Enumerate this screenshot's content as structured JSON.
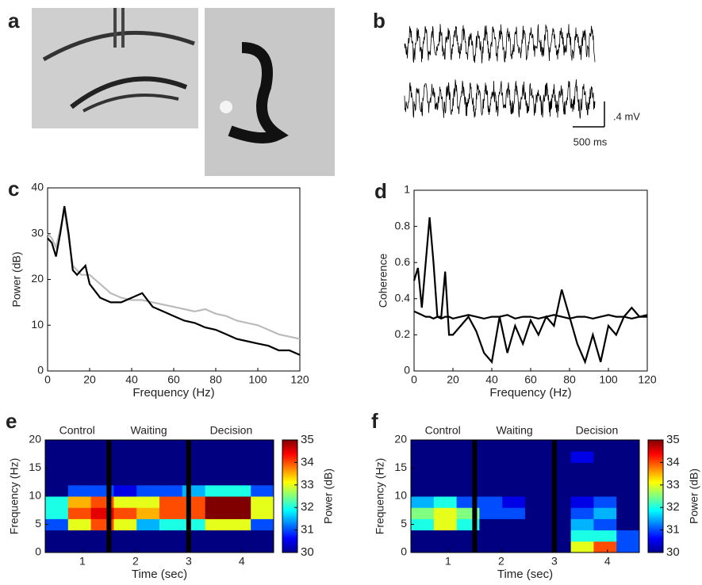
{
  "figure": {
    "panel_a": {
      "label": "a"
    },
    "panel_b": {
      "label": "b",
      "scale_voltage": ".4 mV",
      "scale_time": "500 ms"
    }
  },
  "chart_data": [
    {
      "panel": "c",
      "type": "line",
      "xlabel": "Frequency (Hz)",
      "ylabel": "Power (dB)",
      "x": [
        0,
        2,
        4,
        6,
        8,
        10,
        12,
        14,
        16,
        18,
        20,
        25,
        30,
        35,
        40,
        45,
        50,
        55,
        60,
        65,
        70,
        75,
        80,
        85,
        90,
        95,
        100,
        105,
        110,
        115,
        120
      ],
      "series": [
        {
          "color": "#bbbbbb",
          "values": [
            30,
            29,
            27,
            31,
            35,
            29,
            23,
            22,
            21,
            21,
            21,
            19,
            17,
            16,
            15.5,
            15.5,
            15,
            14.5,
            14,
            13.5,
            13,
            13.5,
            12.5,
            12,
            11,
            10.5,
            10,
            9,
            8,
            7.5,
            7
          ]
        },
        {
          "color": "#000000",
          "values": [
            29,
            28,
            25,
            30,
            36,
            30,
            22,
            21,
            22,
            23,
            19,
            16,
            15,
            15,
            16,
            17,
            14,
            13,
            12,
            11,
            10.5,
            9.5,
            9,
            8,
            7,
            6.5,
            6,
            5.5,
            4.5,
            4.5,
            3.5
          ]
        }
      ],
      "xlim": [
        0,
        120
      ],
      "xticks": [
        0,
        20,
        40,
        60,
        80,
        100,
        120
      ],
      "ylim": [
        0,
        40
      ],
      "yticks": [
        0,
        10,
        20,
        30,
        40
      ]
    },
    {
      "panel": "d",
      "type": "line",
      "xlabel": "Frequency (Hz)",
      "ylabel": "Coherence",
      "x": [
        0,
        2,
        4,
        6,
        8,
        10,
        12,
        14,
        16,
        18,
        20,
        24,
        28,
        32,
        36,
        40,
        44,
        48,
        52,
        56,
        60,
        64,
        68,
        72,
        76,
        80,
        84,
        88,
        92,
        96,
        100,
        104,
        108,
        112,
        116,
        120
      ],
      "series": [
        {
          "color": "#000000",
          "values": [
            0.5,
            0.57,
            0.35,
            0.6,
            0.85,
            0.6,
            0.3,
            0.3,
            0.55,
            0.2,
            0.2,
            0.25,
            0.3,
            0.22,
            0.1,
            0.05,
            0.3,
            0.1,
            0.25,
            0.15,
            0.28,
            0.2,
            0.3,
            0.25,
            0.45,
            0.3,
            0.15,
            0.05,
            0.2,
            0.05,
            0.25,
            0.2,
            0.3,
            0.35,
            0.3,
            0.3
          ]
        },
        {
          "color": "#000000",
          "values": [
            0.33,
            0.32,
            0.31,
            0.3,
            0.3,
            0.29,
            0.3,
            0.29,
            0.3,
            0.3,
            0.29,
            0.3,
            0.31,
            0.3,
            0.29,
            0.3,
            0.3,
            0.31,
            0.29,
            0.3,
            0.3,
            0.29,
            0.3,
            0.31,
            0.3,
            0.29,
            0.3,
            0.3,
            0.29,
            0.3,
            0.31,
            0.3,
            0.3,
            0.29,
            0.3,
            0.31
          ]
        }
      ],
      "xlim": [
        0,
        120
      ],
      "xticks": [
        0,
        20,
        40,
        60,
        80,
        100,
        120
      ],
      "ylim": [
        0,
        1
      ],
      "yticks": [
        0,
        0.2,
        0.4,
        0.6,
        0.8,
        1
      ]
    },
    {
      "panel": "e",
      "type": "heatmap",
      "xlabel": "Time (sec)",
      "ylabel": "Frequency (Hz)",
      "colorbar_label": "Power (dB)",
      "annotations": [
        "Control",
        "Waiting",
        "Decision"
      ],
      "dividers": [
        1.5,
        3
      ],
      "xlim": [
        0.3,
        4.6
      ],
      "xticks": [
        1,
        2,
        3,
        4
      ],
      "ylim": [
        0,
        20
      ],
      "yticks": [
        0,
        5,
        10,
        15,
        20
      ],
      "zlim": [
        30,
        35
      ],
      "zticks": [
        30,
        31,
        32,
        33,
        34,
        35
      ],
      "z": [
        [
          30,
          30,
          30,
          30,
          30,
          30,
          30,
          30,
          30,
          30
        ],
        [
          30,
          30,
          30,
          30,
          30,
          30,
          30,
          30,
          30,
          30
        ],
        [
          31,
          33,
          34,
          33,
          31.5,
          32,
          32,
          33,
          33,
          31
        ],
        [
          32,
          34,
          34.5,
          34,
          33.5,
          34,
          34,
          35,
          35,
          33
        ],
        [
          32,
          33.5,
          34,
          33,
          33,
          34,
          34,
          35,
          35,
          33
        ],
        [
          30,
          31,
          31,
          30.5,
          31,
          31,
          31.5,
          32,
          32,
          31
        ],
        [
          30,
          30,
          30,
          30,
          30,
          30,
          30,
          30,
          30,
          30
        ],
        [
          30,
          30,
          30,
          30,
          30,
          30,
          30,
          30,
          30,
          30
        ],
        [
          30,
          30,
          30,
          30,
          30,
          30,
          30,
          30,
          30,
          30
        ],
        [
          30,
          30,
          30,
          30,
          30,
          30,
          30,
          30,
          30,
          30
        ]
      ]
    },
    {
      "panel": "f",
      "type": "heatmap",
      "xlabel": "Time (sec)",
      "ylabel": "Frequency (Hz)",
      "colorbar_label": "Power (dB)",
      "annotations": [
        "Control",
        "Waiting",
        "Decision"
      ],
      "dividers": [
        1.5,
        3
      ],
      "xlim": [
        0.3,
        4.6
      ],
      "xticks": [
        1,
        2,
        3,
        4
      ],
      "ylim": [
        0,
        20
      ],
      "yticks": [
        0,
        5,
        10,
        15,
        20
      ],
      "zlim": [
        30,
        35
      ],
      "zticks": [
        30,
        31,
        32,
        33,
        34,
        35
      ],
      "z": [
        [
          30,
          30,
          30,
          30,
          30,
          30,
          30,
          33,
          34,
          31
        ],
        [
          30,
          30,
          30,
          30,
          30,
          30,
          30,
          32,
          32,
          31
        ],
        [
          32,
          33,
          32,
          30,
          30,
          30,
          30,
          31.5,
          31,
          30
        ],
        [
          32.5,
          33,
          32.5,
          31,
          31,
          30,
          30,
          31,
          31.5,
          30
        ],
        [
          31.5,
          32,
          31,
          31,
          30.5,
          30,
          30,
          30.5,
          31,
          30
        ],
        [
          30,
          30,
          30,
          30,
          30,
          30,
          30,
          30,
          30,
          30
        ],
        [
          30,
          30,
          30,
          30,
          30,
          30,
          30,
          30,
          30,
          30
        ],
        [
          30,
          30,
          30,
          30,
          30,
          30,
          30,
          30,
          30,
          30
        ],
        [
          30,
          30,
          30,
          30,
          30,
          30,
          30,
          30.5,
          30,
          30
        ],
        [
          30,
          30,
          30,
          30,
          30,
          30,
          30,
          30,
          30,
          30
        ]
      ]
    }
  ]
}
